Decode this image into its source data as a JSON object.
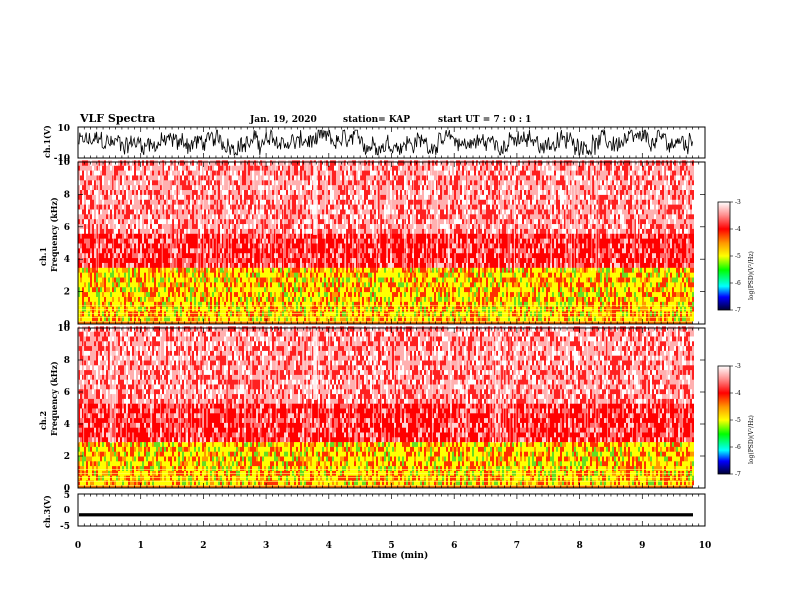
{
  "header": {
    "title": "VLF Spectra",
    "date": "Jan. 19, 2020",
    "station": "station= KAP",
    "start_ut": "start UT =  7 : 0  : 1"
  },
  "colors": {
    "red": "#ff1a1a",
    "yellow": "#ffff00",
    "green": "#33cc33",
    "white": "#ffffff",
    "black": "#000000"
  },
  "chart_data": [
    {
      "type": "line",
      "name": "ch1-waveform",
      "ylabel": "ch.1(V)",
      "ylim": [
        -10,
        10
      ],
      "yticks": [
        "10",
        "-10"
      ],
      "xlim": [
        0,
        10
      ],
      "values_description": "Noisy voltage trace, amplitude mostly between -8 and 8 V"
    },
    {
      "type": "heatmap",
      "name": "ch1-spectrogram",
      "ylabel": "ch.1\nFrequency (kHz)",
      "ylim": [
        0,
        10
      ],
      "yticks": [
        "0",
        "2",
        "4",
        "6",
        "8",
        "10"
      ],
      "xlim": [
        0,
        9.8
      ],
      "colorbar": {
        "label": "log(PSD)(V²/Hz)",
        "range": [
          -7,
          -3
        ],
        "ticks": [
          "-3",
          "-4",
          "-5",
          "-6",
          "-7"
        ]
      },
      "bands_khz": {
        "yellow_green_max": 3.3,
        "red_dense_max": 5.5,
        "red_sparse_max": 10
      },
      "vertical_white_gap_min": 3.75
    },
    {
      "type": "heatmap",
      "name": "ch2-spectrogram",
      "ylabel": "ch.2\nFrequency (kHz)",
      "ylim": [
        0,
        10
      ],
      "yticks": [
        "0",
        "2",
        "4",
        "6",
        "8",
        "10"
      ],
      "xlim": [
        0,
        9.8
      ],
      "colorbar": {
        "label": "log(PSD)(V²/Hz)",
        "range": [
          -7,
          -3
        ],
        "ticks": [
          "-3",
          "-4",
          "-5",
          "-6",
          "-7"
        ]
      },
      "bands_khz": {
        "yellow_green_max": 2.8,
        "red_dense_max": 5.0,
        "red_sparse_max": 10
      },
      "vertical_white_gap_min": 3.75
    },
    {
      "type": "line",
      "name": "ch3-waveform",
      "ylabel": "ch.3(V)",
      "ylim": [
        -5,
        5
      ],
      "yticks": [
        "5",
        "0",
        "-5"
      ],
      "xlim": [
        0,
        10
      ],
      "level_v": -1.5,
      "band_halfwidth_v": 0.5
    }
  ],
  "xaxis": {
    "label": "Time (min)",
    "ticks": [
      "0",
      "1",
      "2",
      "3",
      "4",
      "5",
      "6",
      "7",
      "8",
      "9",
      "10"
    ],
    "range": [
      0,
      10
    ]
  }
}
